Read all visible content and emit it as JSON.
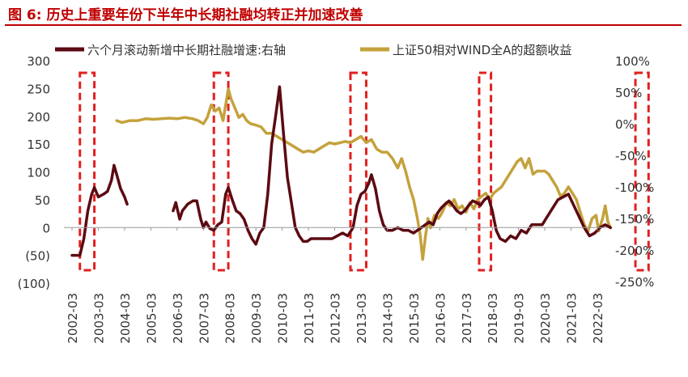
{
  "figure_title": "图 6:  历史上重要年份下半年中长期社融均转正并加速改善",
  "colors": {
    "title": "#c00000",
    "series_dark": "#5c0a12",
    "series_gold": "#c4a23c",
    "highlight_box": "#e02020",
    "negative_tick": "#c00000"
  },
  "chart_data": {
    "type": "line",
    "title": "图 6:  历史上重要年份下半年中长期社融均转正并加速改善",
    "xlabel": "",
    "ylabel_left": "",
    "ylabel_right": "",
    "x_ticks": [
      "2002-03",
      "2003-03",
      "2004-03",
      "2005-03",
      "2006-03",
      "2007-03",
      "2008-03",
      "2009-03",
      "2010-03",
      "2011-03",
      "2012-03",
      "2013-03",
      "2014-03",
      "2015-03",
      "2016-03",
      "2017-03",
      "2018-03",
      "2019-03",
      "2020-03",
      "2021-03",
      "2022-03"
    ],
    "y_left": {
      "range": [
        -100,
        300
      ],
      "ticks": [
        "300",
        "250",
        "200",
        "150",
        "100",
        "50",
        "0",
        "(50)",
        "(100)"
      ],
      "tick_values": [
        300,
        250,
        200,
        150,
        100,
        50,
        0,
        -50,
        -100
      ]
    },
    "y_right": {
      "range": [
        -250,
        100
      ],
      "ticks": [
        "100%",
        "50%",
        "0%",
        "-50%",
        "-100%",
        "-150%",
        "-200%",
        "-250%"
      ],
      "tick_values": [
        100,
        50,
        0,
        -50,
        -100,
        -150,
        -200,
        -250
      ]
    },
    "legend_position": "top",
    "grid": false,
    "series": [
      {
        "name": "六个月滚动新增中长期社融增速:右轴",
        "axis": "left",
        "note": "plotted on left-axis scale",
        "points": [
          [
            2002.0,
            -50
          ],
          [
            2002.3,
            -50
          ],
          [
            2002.45,
            -20
          ],
          [
            2002.6,
            30
          ],
          [
            2002.75,
            60
          ],
          [
            2002.85,
            72
          ],
          [
            2003.0,
            55
          ],
          [
            2003.2,
            60
          ],
          [
            2003.35,
            65
          ],
          [
            2003.5,
            85
          ],
          [
            2003.6,
            112
          ],
          [
            2003.7,
            95
          ],
          [
            2003.85,
            70
          ],
          [
            2004.0,
            55
          ],
          [
            2004.1,
            42
          ],
          null,
          [
            2005.85,
            30
          ],
          [
            2005.95,
            45
          ],
          [
            2006.1,
            15
          ],
          [
            2006.2,
            30
          ],
          [
            2006.4,
            42
          ],
          [
            2006.6,
            48
          ],
          [
            2006.75,
            48
          ],
          [
            2006.9,
            15
          ],
          [
            2007.0,
            0
          ],
          [
            2007.1,
            10
          ],
          [
            2007.25,
            -2
          ],
          [
            2007.4,
            -5
          ],
          [
            2007.55,
            5
          ],
          [
            2007.7,
            10
          ],
          [
            2007.85,
            60
          ],
          [
            2007.95,
            72
          ],
          [
            2008.1,
            50
          ],
          [
            2008.25,
            30
          ],
          [
            2008.4,
            25
          ],
          [
            2008.55,
            15
          ],
          [
            2008.7,
            -5
          ],
          [
            2008.85,
            -20
          ],
          [
            2009.0,
            -30
          ],
          [
            2009.15,
            -10
          ],
          [
            2009.3,
            0
          ],
          [
            2009.45,
            60
          ],
          [
            2009.6,
            150
          ],
          [
            2009.75,
            200
          ],
          [
            2009.9,
            253
          ],
          [
            2010.05,
            170
          ],
          [
            2010.2,
            90
          ],
          [
            2010.35,
            45
          ],
          [
            2010.5,
            0
          ],
          [
            2010.65,
            -15
          ],
          [
            2010.8,
            -25
          ],
          [
            2010.95,
            -25
          ],
          [
            2011.1,
            -20
          ],
          [
            2011.3,
            -20
          ],
          [
            2011.5,
            -20
          ],
          [
            2011.7,
            -20
          ],
          [
            2011.9,
            -20
          ],
          [
            2012.1,
            -15
          ],
          [
            2012.3,
            -10
          ],
          [
            2012.5,
            -15
          ],
          [
            2012.7,
            0
          ],
          [
            2012.85,
            40
          ],
          [
            2013.0,
            60
          ],
          [
            2013.15,
            65
          ],
          [
            2013.3,
            80
          ],
          [
            2013.4,
            95
          ],
          [
            2013.55,
            70
          ],
          [
            2013.7,
            30
          ],
          [
            2013.85,
            5
          ],
          [
            2014.0,
            -5
          ],
          [
            2014.2,
            -5
          ],
          [
            2014.4,
            0
          ],
          [
            2014.6,
            -5
          ],
          [
            2014.8,
            -5
          ],
          [
            2015.0,
            -10
          ],
          [
            2015.15,
            -5
          ],
          [
            2015.3,
            0
          ],
          [
            2015.45,
            5
          ],
          [
            2015.6,
            10
          ],
          [
            2015.75,
            5
          ],
          [
            2015.9,
            25
          ],
          [
            2016.05,
            35
          ],
          [
            2016.2,
            42
          ],
          [
            2016.35,
            48
          ],
          [
            2016.5,
            40
          ],
          [
            2016.65,
            30
          ],
          [
            2016.8,
            25
          ],
          [
            2016.95,
            30
          ],
          [
            2017.1,
            40
          ],
          [
            2017.25,
            48
          ],
          [
            2017.4,
            45
          ],
          [
            2017.55,
            40
          ],
          [
            2017.7,
            50
          ],
          [
            2017.85,
            55
          ],
          [
            2018.0,
            30
          ],
          [
            2018.15,
            -5
          ],
          [
            2018.3,
            -20
          ],
          [
            2018.5,
            -25
          ],
          [
            2018.7,
            -15
          ],
          [
            2018.9,
            -20
          ],
          [
            2019.1,
            -5
          ],
          [
            2019.3,
            -10
          ],
          [
            2019.5,
            5
          ],
          [
            2019.7,
            5
          ],
          [
            2019.9,
            5
          ],
          [
            2020.1,
            20
          ],
          [
            2020.3,
            35
          ],
          [
            2020.5,
            50
          ],
          [
            2020.7,
            55
          ],
          [
            2020.9,
            60
          ],
          [
            2021.1,
            40
          ],
          [
            2021.3,
            20
          ],
          [
            2021.5,
            0
          ],
          [
            2021.7,
            -15
          ],
          [
            2021.9,
            -10
          ],
          [
            2022.1,
            0
          ],
          [
            2022.3,
            5
          ],
          [
            2022.5,
            0
          ]
        ]
      },
      {
        "name": "上证50相对WIND全A的超额收益",
        "axis": "right",
        "points": [
          [
            2003.7,
            5
          ],
          [
            2003.9,
            2
          ],
          [
            2004.2,
            5
          ],
          [
            2004.5,
            5
          ],
          [
            2004.8,
            8
          ],
          [
            2005.1,
            7
          ],
          [
            2005.4,
            8
          ],
          [
            2005.7,
            9
          ],
          [
            2006.0,
            8
          ],
          [
            2006.3,
            10
          ],
          [
            2006.6,
            8
          ],
          [
            2006.8,
            5
          ],
          [
            2007.0,
            0
          ],
          [
            2007.15,
            10
          ],
          [
            2007.3,
            30
          ],
          [
            2007.45,
            20
          ],
          [
            2007.6,
            25
          ],
          [
            2007.75,
            5
          ],
          [
            2007.85,
            30
          ],
          [
            2007.95,
            55
          ],
          [
            2008.05,
            40
          ],
          [
            2008.2,
            25
          ],
          [
            2008.35,
            10
          ],
          [
            2008.5,
            15
          ],
          [
            2008.65,
            5
          ],
          [
            2008.8,
            0
          ],
          [
            2009.0,
            -2
          ],
          [
            2009.2,
            -5
          ],
          [
            2009.4,
            -15
          ],
          [
            2009.6,
            -15
          ],
          [
            2009.8,
            -20
          ],
          [
            2010.0,
            -25
          ],
          [
            2010.2,
            -30
          ],
          [
            2010.4,
            -35
          ],
          [
            2010.6,
            -40
          ],
          [
            2010.8,
            -45
          ],
          [
            2011.0,
            -43
          ],
          [
            2011.2,
            -45
          ],
          [
            2011.4,
            -40
          ],
          [
            2011.6,
            -35
          ],
          [
            2011.8,
            -30
          ],
          [
            2012.0,
            -32
          ],
          [
            2012.2,
            -30
          ],
          [
            2012.4,
            -28
          ],
          [
            2012.6,
            -30
          ],
          [
            2012.8,
            -25
          ],
          [
            2013.0,
            -20
          ],
          [
            2013.2,
            -30
          ],
          [
            2013.4,
            -25
          ],
          [
            2013.6,
            -40
          ],
          [
            2013.8,
            -45
          ],
          [
            2014.0,
            -45
          ],
          [
            2014.2,
            -55
          ],
          [
            2014.4,
            -70
          ],
          [
            2014.55,
            -55
          ],
          [
            2014.7,
            -75
          ],
          [
            2014.85,
            -100
          ],
          [
            2015.0,
            -120
          ],
          [
            2015.15,
            -150
          ],
          [
            2015.25,
            -175
          ],
          [
            2015.35,
            -215
          ],
          [
            2015.45,
            -180
          ],
          [
            2015.55,
            -150
          ],
          [
            2015.65,
            -165
          ],
          [
            2015.8,
            -145
          ],
          [
            2015.95,
            -150
          ],
          [
            2016.1,
            -140
          ],
          [
            2016.25,
            -125
          ],
          [
            2016.4,
            -130
          ],
          [
            2016.55,
            -120
          ],
          [
            2016.7,
            -135
          ],
          [
            2016.85,
            -130
          ],
          [
            2017.0,
            -140
          ],
          [
            2017.15,
            -125
          ],
          [
            2017.3,
            -135
          ],
          [
            2017.45,
            -120
          ],
          [
            2017.6,
            -115
          ],
          [
            2017.75,
            -110
          ],
          [
            2017.9,
            -120
          ],
          [
            2018.05,
            -110
          ],
          [
            2018.2,
            -105
          ],
          [
            2018.35,
            -100
          ],
          [
            2018.5,
            -90
          ],
          [
            2018.65,
            -80
          ],
          [
            2018.8,
            -70
          ],
          [
            2018.95,
            -60
          ],
          [
            2019.1,
            -55
          ],
          [
            2019.25,
            -70
          ],
          [
            2019.4,
            -55
          ],
          [
            2019.55,
            -80
          ],
          [
            2019.7,
            -75
          ],
          [
            2019.85,
            -75
          ],
          [
            2020.0,
            -75
          ],
          [
            2020.15,
            -80
          ],
          [
            2020.3,
            -90
          ],
          [
            2020.45,
            -100
          ],
          [
            2020.6,
            -115
          ],
          [
            2020.75,
            -110
          ],
          [
            2020.9,
            -100
          ],
          [
            2021.05,
            -110
          ],
          [
            2021.2,
            -120
          ],
          [
            2021.35,
            -140
          ],
          [
            2021.5,
            -160
          ],
          [
            2021.65,
            -170
          ],
          [
            2021.8,
            -150
          ],
          [
            2021.95,
            -145
          ],
          [
            2022.05,
            -170
          ],
          [
            2022.2,
            -150
          ],
          [
            2022.3,
            -130
          ],
          [
            2022.4,
            -155
          ],
          [
            2022.5,
            -165
          ]
        ]
      }
    ],
    "highlight_ranges": [
      [
        2002.3,
        2002.85
      ],
      [
        2007.4,
        2007.95
      ],
      [
        2012.6,
        2013.2
      ],
      [
        2017.5,
        2017.95
      ],
      [
        2023.45,
        2023.95
      ]
    ]
  }
}
